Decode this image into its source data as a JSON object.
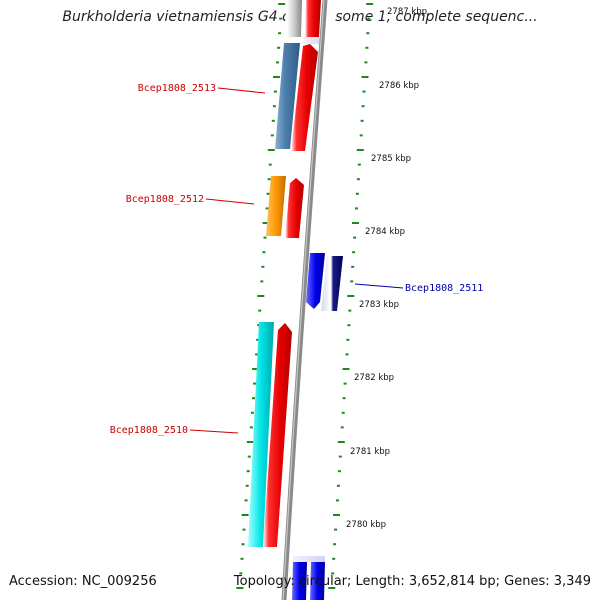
{
  "title": "Burkholderia vietnamiensis G4 chromosome 1, complete sequenc...",
  "accession": "Accession: NC_009256",
  "topology": "Topology: circular; Length: 3,652,814 bp; Genes: 3,349",
  "scale_labels": [
    "2787 kbp",
    "2786 kbp",
    "2785 kbp",
    "2784 kbp",
    "2783 kbp",
    "2782 kbp",
    "2781 kbp",
    "2780 kbp"
  ],
  "gene_labels": [
    "Bcep1808_2513",
    "Bcep1808_2512",
    "Bcep1808_2511",
    "Bcep1808_2510"
  ],
  "colors": {
    "forward_label": "#cc0000",
    "reverse_label": "#0000aa",
    "tick": "#1a8a1a",
    "backbone": "#8a8a8a"
  }
}
